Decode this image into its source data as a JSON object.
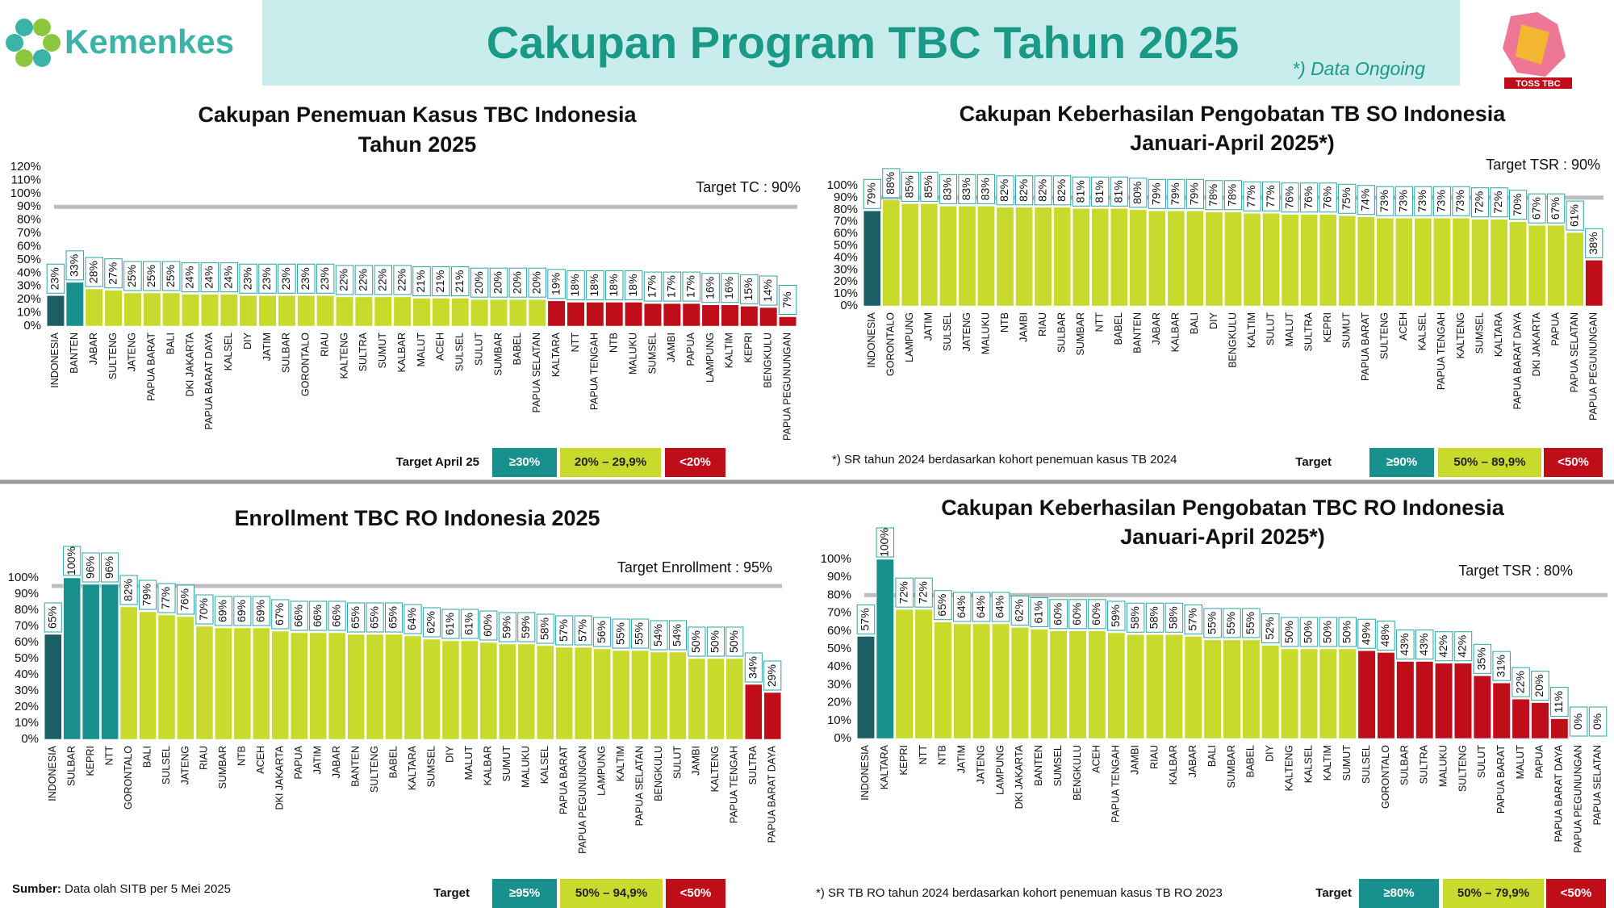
{
  "header": {
    "brand": "Kemenkes",
    "title": "Cakupan Program TBC Tahun 2025",
    "note": "*) Data Ongoing",
    "logo_text": "TOSS TBC"
  },
  "footer": {
    "source_label": "Sumber:",
    "source": "Data olah SITB per 5 Mei 2025"
  },
  "chart_data": [
    {
      "type": "bar",
      "title": [
        "Cakupan Penemuan Kasus TBC Indonesia",
        "Tahun 2025"
      ],
      "categories": [
        "INDONESIA",
        "BANTEN",
        "JABAR",
        "SULTENG",
        "JATENG",
        "PAPUA BARAT",
        "BALI",
        "DKI JAKARTA",
        "PAPUA BARAT DAYA",
        "KALSEL",
        "DIY",
        "JATIM",
        "SULBAR",
        "GORONTALO",
        "RIAU",
        "KALTENG",
        "SULTRA",
        "SUMUT",
        "KALBAR",
        "MALUT",
        "ACEH",
        "SULSEL",
        "SULUT",
        "SUMBAR",
        "BABEL",
        "PAPUA SELATAN",
        "KALTARA",
        "NTT",
        "PAPUA TENGAH",
        "NTB",
        "MALUKU",
        "SUMSEL",
        "JAMBI",
        "PAPUA",
        "LAMPUNG",
        "KALTIM",
        "KEPRI",
        "BENGKULU",
        "PAPUA PEGUNUNGAN"
      ],
      "values": [
        23,
        33,
        28,
        27,
        25,
        25,
        25,
        24,
        24,
        24,
        23,
        23,
        23,
        23,
        23,
        22,
        22,
        22,
        22,
        21,
        21,
        21,
        20,
        20,
        20,
        20,
        19,
        18,
        18,
        18,
        18,
        17,
        17,
        17,
        16,
        16,
        15,
        14,
        7
      ],
      "value_labels": [
        "23%",
        "33%",
        "28%",
        "27%",
        "25%",
        "25%",
        "25%",
        "24%",
        "24%",
        "24%",
        "23%",
        "23%",
        "23%",
        "23%",
        "23%",
        "22%",
        "22%",
        "22%",
        "22%",
        "21%",
        "21%",
        "21%",
        "20%",
        "20%",
        "20%",
        "20%",
        "19%",
        "18%",
        "18%",
        "18%",
        "18%",
        "17%",
        "17%",
        "17%",
        "16%",
        "16%",
        "15%",
        "14%",
        "7%"
      ],
      "colors": [
        "#1b5e64",
        "#18918e",
        "#c8da2b",
        "#c8da2b",
        "#c8da2b",
        "#c8da2b",
        "#c8da2b",
        "#c8da2b",
        "#c8da2b",
        "#c8da2b",
        "#c8da2b",
        "#c8da2b",
        "#c8da2b",
        "#c8da2b",
        "#c8da2b",
        "#c8da2b",
        "#c8da2b",
        "#c8da2b",
        "#c8da2b",
        "#c8da2b",
        "#c8da2b",
        "#c8da2b",
        "#c8da2b",
        "#c8da2b",
        "#c8da2b",
        "#c8da2b",
        "#c00d1a",
        "#c00d1a",
        "#c00d1a",
        "#c00d1a",
        "#c00d1a",
        "#c00d1a",
        "#c00d1a",
        "#c00d1a",
        "#c00d1a",
        "#c00d1a",
        "#c00d1a",
        "#c00d1a",
        "#c00d1a"
      ],
      "ylim": [
        0,
        120
      ],
      "yticks": [
        {
          "value": 0,
          "label": "0%"
        },
        {
          "value": 10,
          "label": "10%"
        },
        {
          "value": 20,
          "label": "20%"
        },
        {
          "value": 30,
          "label": "30%"
        },
        {
          "value": 40,
          "label": "40%"
        },
        {
          "value": 50,
          "label": "50%"
        },
        {
          "value": 60,
          "label": "60%"
        },
        {
          "value": 70,
          "label": "70%"
        },
        {
          "value": 80,
          "label": "80%"
        },
        {
          "value": 90,
          "label": "90%"
        },
        {
          "value": 100,
          "label": "100%"
        },
        {
          "value": 110,
          "label": "110%"
        },
        {
          "value": 120,
          "label": "120%"
        }
      ],
      "target": {
        "value": 90,
        "label": "Target TC : 90%"
      },
      "legend": {
        "title": "Target April 25",
        "items": [
          {
            "label": "≥30%",
            "color": "#18918e"
          },
          {
            "label": "20% – 29,9%",
            "color": "#c8da2b"
          },
          {
            "label": "<20%",
            "color": "#c00d1a"
          }
        ]
      }
    },
    {
      "type": "bar",
      "title": [
        "Cakupan Keberhasilan Pengobatan TB SO Indonesia",
        "Januari-April 2025*)"
      ],
      "categories": [
        "INDONESIA",
        "GORONTALO",
        "LAMPUNG",
        "JATIM",
        "SULSEL",
        "JATENG",
        "MALUKU",
        "NTB",
        "JAMBI",
        "RIAU",
        "SULBAR",
        "SUMBAR",
        "NTT",
        "BABEL",
        "BANTEN",
        "JABAR",
        "KALBAR",
        "BALI",
        "DIY",
        "BENGKULU",
        "KALTIM",
        "SULUT",
        "MALUT",
        "SULTRA",
        "KEPRI",
        "SUMUT",
        "PAPUA BARAT",
        "SULTENG",
        "ACEH",
        "KALSEL",
        "PAPUA TENGAH",
        "KALTENG",
        "SUMSEL",
        "KALTARA",
        "PAPUA BARAT DAYA",
        "DKI JAKARTA",
        "PAPUA",
        "PAPUA SELATAN",
        "PAPUA PEGUNUNGAN"
      ],
      "values": [
        79,
        88,
        85,
        85,
        83,
        83,
        83,
        82,
        82,
        82,
        82,
        81,
        81,
        81,
        80,
        79,
        79,
        79,
        78,
        78,
        77,
        77,
        76,
        76,
        76,
        75,
        74,
        73,
        73,
        73,
        73,
        73,
        72,
        72,
        70,
        67,
        67,
        61,
        38
      ],
      "value_labels": [
        "79%",
        "88%",
        "85%",
        "85%",
        "83%",
        "83%",
        "83%",
        "82%",
        "82%",
        "82%",
        "82%",
        "81%",
        "81%",
        "81%",
        "80%",
        "79%",
        "79%",
        "79%",
        "78%",
        "78%",
        "77%",
        "77%",
        "76%",
        "76%",
        "76%",
        "75%",
        "74%",
        "73%",
        "73%",
        "73%",
        "73%",
        "73%",
        "72%",
        "72%",
        "70%",
        "67%",
        "67%",
        "61%",
        "38%"
      ],
      "colors": [
        "#1b5e64",
        "#c8da2b",
        "#c8da2b",
        "#c8da2b",
        "#c8da2b",
        "#c8da2b",
        "#c8da2b",
        "#c8da2b",
        "#c8da2b",
        "#c8da2b",
        "#c8da2b",
        "#c8da2b",
        "#c8da2b",
        "#c8da2b",
        "#c8da2b",
        "#c8da2b",
        "#c8da2b",
        "#c8da2b",
        "#c8da2b",
        "#c8da2b",
        "#c8da2b",
        "#c8da2b",
        "#c8da2b",
        "#c8da2b",
        "#c8da2b",
        "#c8da2b",
        "#c8da2b",
        "#c8da2b",
        "#c8da2b",
        "#c8da2b",
        "#c8da2b",
        "#c8da2b",
        "#c8da2b",
        "#c8da2b",
        "#c8da2b",
        "#c8da2b",
        "#c8da2b",
        "#c8da2b",
        "#c00d1a"
      ],
      "ylim": [
        0,
        100
      ],
      "yticks": [
        {
          "value": 0,
          "label": "0%"
        },
        {
          "value": 10,
          "label": "10%"
        },
        {
          "value": 20,
          "label": "20%"
        },
        {
          "value": 30,
          "label": "30%"
        },
        {
          "value": 40,
          "label": "40%"
        },
        {
          "value": 50,
          "label": "50%"
        },
        {
          "value": 60,
          "label": "60%"
        },
        {
          "value": 70,
          "label": "70%"
        },
        {
          "value": 80,
          "label": "80%"
        },
        {
          "value": 90,
          "label": "90%"
        },
        {
          "value": 100,
          "label": "100%"
        }
      ],
      "target": {
        "value": 90,
        "label": "Target TSR : 90%"
      },
      "note": "*) SR tahun 2024 berdasarkan kohort penemuan kasus TB 2024",
      "legend": {
        "title": "Target",
        "items": [
          {
            "label": "≥90%",
            "color": "#18918e"
          },
          {
            "label": "50% – 89,9%",
            "color": "#c8da2b"
          },
          {
            "label": "<50%",
            "color": "#c00d1a"
          }
        ]
      }
    },
    {
      "type": "bar",
      "title": [
        "Enrollment TBC RO Indonesia 2025"
      ],
      "categories": [
        "INDONESIA",
        "SULBAR",
        "KEPRI",
        "NTT",
        "GORONTALO",
        "BALI",
        "SULSEL",
        "JATENG",
        "RIAU",
        "SUMBAR",
        "NTB",
        "ACEH",
        "DKI JAKARTA",
        "PAPUA",
        "JATIM",
        "JABAR",
        "BANTEN",
        "SULTENG",
        "BABEL",
        "KALTARA",
        "SUMSEL",
        "DIY",
        "MALUT",
        "KALBAR",
        "SUMUT",
        "MALUKU",
        "KALSEL",
        "PAPUA BARAT",
        "PAPUA PEGUNUNGAN",
        "LAMPUNG",
        "KALTIM",
        "PAPUA SELATAN",
        "BENGKULU",
        "SULUT",
        "JAMBI",
        "KALTENG",
        "PAPUA TENGAH",
        "SULTRA",
        "PAPUA BARAT DAYA"
      ],
      "values": [
        65,
        100,
        96,
        96,
        82,
        79,
        77,
        76,
        70,
        69,
        69,
        69,
        67,
        66,
        66,
        66,
        65,
        65,
        65,
        64,
        62,
        61,
        61,
        60,
        59,
        59,
        58,
        57,
        57,
        56,
        55,
        55,
        54,
        54,
        50,
        50,
        50,
        34,
        29
      ],
      "value_labels": [
        "65%",
        "100%",
        "96%",
        "96%",
        "82%",
        "79%",
        "77%",
        "76%",
        "70%",
        "69%",
        "69%",
        "69%",
        "67%",
        "66%",
        "66%",
        "66%",
        "65%",
        "65%",
        "65%",
        "64%",
        "62%",
        "61%",
        "61%",
        "60%",
        "59%",
        "59%",
        "58%",
        "57%",
        "57%",
        "56%",
        "55%",
        "55%",
        "54%",
        "54%",
        "50%",
        "50%",
        "50%",
        "34%",
        "29%"
      ],
      "colors": [
        "#1b5e64",
        "#18918e",
        "#18918e",
        "#18918e",
        "#c8da2b",
        "#c8da2b",
        "#c8da2b",
        "#c8da2b",
        "#c8da2b",
        "#c8da2b",
        "#c8da2b",
        "#c8da2b",
        "#c8da2b",
        "#c8da2b",
        "#c8da2b",
        "#c8da2b",
        "#c8da2b",
        "#c8da2b",
        "#c8da2b",
        "#c8da2b",
        "#c8da2b",
        "#c8da2b",
        "#c8da2b",
        "#c8da2b",
        "#c8da2b",
        "#c8da2b",
        "#c8da2b",
        "#c8da2b",
        "#c8da2b",
        "#c8da2b",
        "#c8da2b",
        "#c8da2b",
        "#c8da2b",
        "#c8da2b",
        "#c8da2b",
        "#c8da2b",
        "#c8da2b",
        "#c00d1a",
        "#c00d1a"
      ],
      "ylim": [
        0,
        100
      ],
      "yticks": [
        {
          "value": 0,
          "label": "0%"
        },
        {
          "value": 10,
          "label": "10%"
        },
        {
          "value": 20,
          "label": "20%"
        },
        {
          "value": 30,
          "label": "30%"
        },
        {
          "value": 40,
          "label": "40%"
        },
        {
          "value": 50,
          "label": "50%"
        },
        {
          "value": 60,
          "label": "60%"
        },
        {
          "value": 70,
          "label": "70%"
        },
        {
          "value": 80,
          "label": "80%"
        },
        {
          "value": 90,
          "label": "90%"
        },
        {
          "value": 100,
          "label": "100%"
        }
      ],
      "target": {
        "value": 95,
        "label": "Target Enrollment : 95%"
      },
      "legend": {
        "title": "Target",
        "items": [
          {
            "label": "≥95%",
            "color": "#18918e"
          },
          {
            "label": "50% – 94,9%",
            "color": "#c8da2b"
          },
          {
            "label": "<50%",
            "color": "#c00d1a"
          }
        ]
      }
    },
    {
      "type": "bar",
      "title": [
        "Cakupan Keberhasilan Pengobatan TBC RO Indonesia",
        "Januari-April 2025*)"
      ],
      "categories": [
        "INDONESIA",
        "KALTARA",
        "KEPRI",
        "NTT",
        "NTB",
        "JATIM",
        "JATENG",
        "LAMPUNG",
        "DKI JAKARTA",
        "BANTEN",
        "SUMSEL",
        "BENGKULU",
        "ACEH",
        "PAPUA TENGAH",
        "JAMBI",
        "RIAU",
        "KALBAR",
        "JABAR",
        "BALI",
        "SUMBAR",
        "BABEL",
        "DIY",
        "KALTENG",
        "KALSEL",
        "KALTIM",
        "SUMUT",
        "SULSEL",
        "GORONTALO",
        "SULBAR",
        "SULTRA",
        "MALUKU",
        "SULTENG",
        "SULUT",
        "PAPUA BARAT",
        "MALUT",
        "PAPUA",
        "PAPUA BARAT DAYA",
        "PAPUA PEGUNUNGAN",
        "PAPUA SELATAN"
      ],
      "values": [
        57,
        100,
        72,
        72,
        65,
        64,
        64,
        64,
        62,
        61,
        60,
        60,
        60,
        59,
        58,
        58,
        58,
        57,
        55,
        55,
        55,
        52,
        50,
        50,
        50,
        50,
        49,
        48,
        43,
        43,
        42,
        42,
        35,
        31,
        22,
        20,
        11,
        0,
        0
      ],
      "value_labels": [
        "57%",
        "100%",
        "72%",
        "72%",
        "65%",
        "64%",
        "64%",
        "64%",
        "62%",
        "61%",
        "60%",
        "60%",
        "60%",
        "59%",
        "58%",
        "58%",
        "58%",
        "57%",
        "55%",
        "55%",
        "55%",
        "52%",
        "50%",
        "50%",
        "50%",
        "50%",
        "49%",
        "48%",
        "43%",
        "43%",
        "42%",
        "42%",
        "35%",
        "31%",
        "22%",
        "20%",
        "11%",
        "0%",
        "0%"
      ],
      "colors": [
        "#1b5e64",
        "#18918e",
        "#c8da2b",
        "#c8da2b",
        "#c8da2b",
        "#c8da2b",
        "#c8da2b",
        "#c8da2b",
        "#c8da2b",
        "#c8da2b",
        "#c8da2b",
        "#c8da2b",
        "#c8da2b",
        "#c8da2b",
        "#c8da2b",
        "#c8da2b",
        "#c8da2b",
        "#c8da2b",
        "#c8da2b",
        "#c8da2b",
        "#c8da2b",
        "#c8da2b",
        "#c8da2b",
        "#c8da2b",
        "#c8da2b",
        "#c8da2b",
        "#c00d1a",
        "#c00d1a",
        "#c00d1a",
        "#c00d1a",
        "#c00d1a",
        "#c00d1a",
        "#c00d1a",
        "#c00d1a",
        "#c00d1a",
        "#c00d1a",
        "#c00d1a",
        "#c00d1a",
        "#c00d1a"
      ],
      "ylim": [
        0,
        100
      ],
      "yticks": [
        {
          "value": 0,
          "label": "0%"
        },
        {
          "value": 10,
          "label": "10%"
        },
        {
          "value": 20,
          "label": "20%"
        },
        {
          "value": 30,
          "label": "30%"
        },
        {
          "value": 40,
          "label": "40%"
        },
        {
          "value": 50,
          "label": "50%"
        },
        {
          "value": 60,
          "label": "60%"
        },
        {
          "value": 70,
          "label": "70%"
        },
        {
          "value": 80,
          "label": "80%"
        },
        {
          "value": 90,
          "label": "90%"
        },
        {
          "value": 100,
          "label": "100%"
        }
      ],
      "target": {
        "value": 80,
        "label": "Target TSR : 80%"
      },
      "note": "*) SR TB RO tahun 2024 berdasarkan kohort penemuan kasus TB RO 2023",
      "legend": {
        "title": "Target",
        "items": [
          {
            "label": "≥80%",
            "color": "#18918e"
          },
          {
            "label": "50% – 79,9%",
            "color": "#c8da2b"
          },
          {
            "label": "<50%",
            "color": "#c00d1a"
          }
        ]
      }
    }
  ]
}
